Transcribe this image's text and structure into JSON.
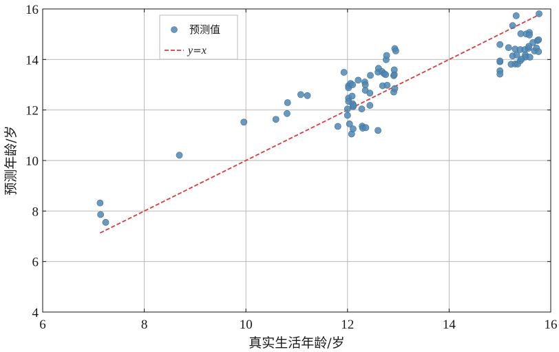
{
  "chart_data": {
    "type": "scatter",
    "xlabel": "真实生活年龄/岁",
    "ylabel": "预测年龄/岁",
    "xlim": [
      6,
      16
    ],
    "ylim": [
      4,
      16
    ],
    "xticks": [
      6,
      8,
      10,
      12,
      14,
      16
    ],
    "yticks": [
      4,
      6,
      8,
      10,
      12,
      14,
      16
    ],
    "grid": true,
    "legend_position": "top-left",
    "series": [
      {
        "name": "预测值",
        "kind": "scatter",
        "color": "#4f87b3",
        "points": [
          [
            7.13,
            8.32
          ],
          [
            7.14,
            7.86
          ],
          [
            7.24,
            7.55
          ],
          [
            8.69,
            10.21
          ],
          [
            9.96,
            11.52
          ],
          [
            10.59,
            11.63
          ],
          [
            10.81,
            11.86
          ],
          [
            10.82,
            12.29
          ],
          [
            11.08,
            12.61
          ],
          [
            11.21,
            12.57
          ],
          [
            11.81,
            11.35
          ],
          [
            11.93,
            13.49
          ],
          [
            12.0,
            12.04
          ],
          [
            12.0,
            11.79
          ],
          [
            12.02,
            12.47
          ],
          [
            12.02,
            12.34
          ],
          [
            12.02,
            12.96
          ],
          [
            12.02,
            12.88
          ],
          [
            12.04,
            11.45
          ],
          [
            12.06,
            13.05
          ],
          [
            12.08,
            11.05
          ],
          [
            12.09,
            12.55
          ],
          [
            12.1,
            13.0
          ],
          [
            12.1,
            12.25
          ],
          [
            12.11,
            11.25
          ],
          [
            12.11,
            12.13
          ],
          [
            12.12,
            12.18
          ],
          [
            12.21,
            13.18
          ],
          [
            12.28,
            12.04
          ],
          [
            12.29,
            11.36
          ],
          [
            12.3,
            11.28
          ],
          [
            12.34,
            13.11
          ],
          [
            12.35,
            12.78
          ],
          [
            12.35,
            13.0
          ],
          [
            12.36,
            11.3
          ],
          [
            12.44,
            12.18
          ],
          [
            12.44,
            12.67
          ],
          [
            12.45,
            13.37
          ],
          [
            12.6,
            11.19
          ],
          [
            12.6,
            13.5
          ],
          [
            12.61,
            13.65
          ],
          [
            12.68,
            13.52
          ],
          [
            12.69,
            12.96
          ],
          [
            12.72,
            13.44
          ],
          [
            12.75,
            13.4
          ],
          [
            12.76,
            13.99
          ],
          [
            12.77,
            14.16
          ],
          [
            12.78,
            12.98
          ],
          [
            12.91,
            12.71
          ],
          [
            12.91,
            13.36
          ],
          [
            12.92,
            13.4
          ],
          [
            12.92,
            13.59
          ],
          [
            12.93,
            12.85
          ],
          [
            12.93,
            14.43
          ],
          [
            12.95,
            14.34
          ],
          [
            15.0,
            14.59
          ],
          [
            15.0,
            13.91
          ],
          [
            15.0,
            13.94
          ],
          [
            15.0,
            13.55
          ],
          [
            15.0,
            13.42
          ],
          [
            15.17,
            14.47
          ],
          [
            15.22,
            13.81
          ],
          [
            15.25,
            15.34
          ],
          [
            15.25,
            14.14
          ],
          [
            15.3,
            13.82
          ],
          [
            15.3,
            14.41
          ],
          [
            15.32,
            15.73
          ],
          [
            15.33,
            14.18
          ],
          [
            15.35,
            13.82
          ],
          [
            15.4,
            14.39
          ],
          [
            15.4,
            13.95
          ],
          [
            15.41,
            15.02
          ],
          [
            15.43,
            14.02
          ],
          [
            15.49,
            14.39
          ],
          [
            15.5,
            14.18
          ],
          [
            15.51,
            14.1
          ],
          [
            15.52,
            15.01
          ],
          [
            15.56,
            14.44
          ],
          [
            15.57,
            14.52
          ],
          [
            15.58,
            15.07
          ],
          [
            15.58,
            14.97
          ],
          [
            15.59,
            14.09
          ],
          [
            15.65,
            14.67
          ],
          [
            15.68,
            14.34
          ],
          [
            15.72,
            14.45
          ],
          [
            15.74,
            14.75
          ],
          [
            15.76,
            14.31
          ],
          [
            15.76,
            14.78
          ],
          [
            15.77,
            15.81
          ]
        ]
      },
      {
        "name": "y=x",
        "name_italic_parts": [
          "y",
          "=",
          "x"
        ],
        "kind": "line",
        "style": "dashed",
        "color": "#d93a3a",
        "x": [
          7.13,
          15.78
        ],
        "y": [
          7.13,
          15.78
        ]
      }
    ]
  }
}
